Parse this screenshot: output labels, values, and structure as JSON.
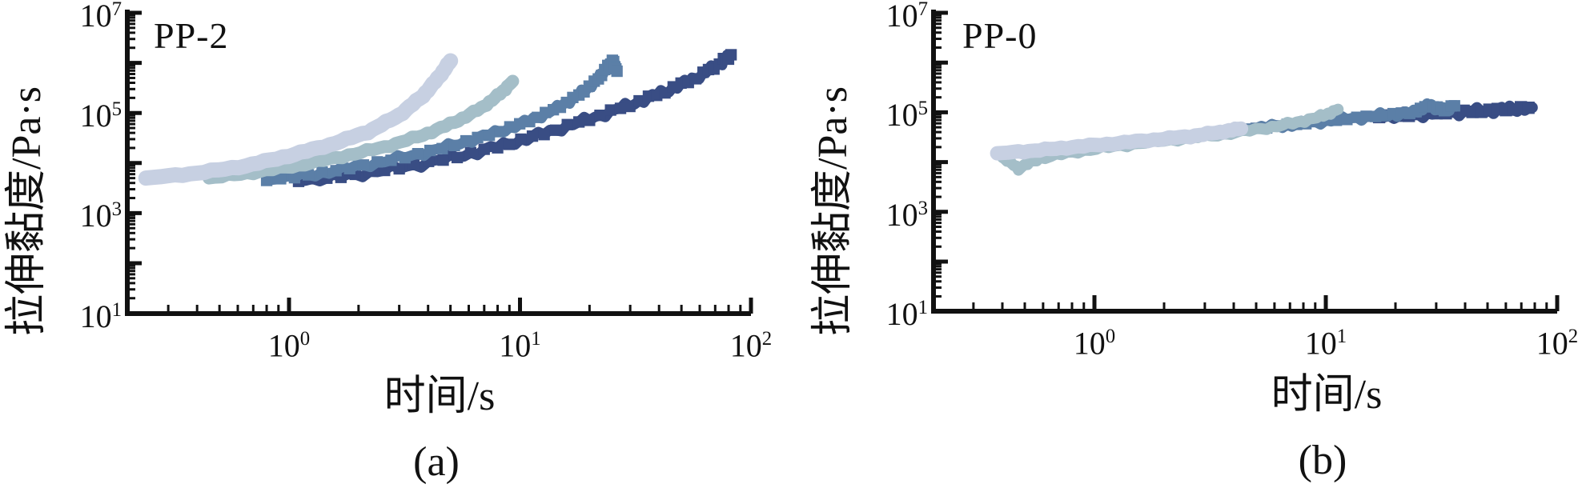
{
  "page": {
    "background": "#ffffff"
  },
  "chart_data": [
    {
      "type": "line",
      "panel": "a",
      "title": "PP-2",
      "xlabel": "时间/s",
      "ylabel": "拉伸黏度/Pa·s",
      "caption": "(a)",
      "x_scale": "log",
      "y_scale": "log",
      "xlim": [
        0.2,
        100
      ],
      "ylim": [
        10,
        10000000
      ],
      "grid": false,
      "legend": null,
      "x_ticks": [
        {
          "label": "10^0",
          "value": 1
        },
        {
          "label": "10^1",
          "value": 10
        },
        {
          "label": "10^2",
          "value": 100
        }
      ],
      "y_ticks": [
        {
          "label": "10^7",
          "value": 10000000
        },
        {
          "label": "10^5",
          "value": 100000
        },
        {
          "label": "10^3",
          "value": 1000
        },
        {
          "label": "10^1",
          "value": 10
        }
      ],
      "series": [
        {
          "id": "a-darkest",
          "color": "#394d84",
          "width": 13,
          "jitter": 3,
          "markers": "square",
          "points": [
            [
              1.1,
              4300
            ],
            [
              1.8,
              5600
            ],
            [
              3.0,
              8000
            ],
            [
              5.0,
              12500
            ],
            [
              8.0,
              21000
            ],
            [
              12,
              36000
            ],
            [
              18,
              65000
            ],
            [
              26,
              115000
            ],
            [
              36,
              200000
            ],
            [
              48,
              340000
            ],
            [
              62,
              600000
            ],
            [
              75,
              1050000
            ],
            [
              82,
              1450000
            ]
          ]
        },
        {
          "id": "a-dark",
          "color": "#5b7fa7",
          "width": 13,
          "jitter": 2.5,
          "markers": "square",
          "points": [
            [
              0.8,
              4500
            ],
            [
              1.3,
              6000
            ],
            [
              2.1,
              9000
            ],
            [
              3.4,
              14000
            ],
            [
              5.2,
              23000
            ],
            [
              7.8,
              40000
            ],
            [
              11,
              70000
            ],
            [
              14.5,
              125000
            ],
            [
              18,
              230000
            ],
            [
              21.5,
              450000
            ],
            [
              24,
              850000
            ],
            [
              25.3,
              1100000
            ],
            [
              26.3,
              680000
            ]
          ]
        },
        {
          "id": "a-light",
          "color": "#a4bec8",
          "width": 16,
          "jitter": 1.2,
          "markers": "none",
          "points": [
            [
              0.45,
              5000
            ],
            [
              0.7,
              6500
            ],
            [
              1.1,
              9000
            ],
            [
              1.7,
              13500
            ],
            [
              2.6,
              21000
            ],
            [
              3.8,
              36000
            ],
            [
              5.2,
              65000
            ],
            [
              6.8,
              125000
            ],
            [
              8.2,
              240000
            ],
            [
              9.3,
              430000
            ]
          ]
        },
        {
          "id": "a-lightest",
          "color": "#c7d0e2",
          "width": 19,
          "jitter": 0.8,
          "markers": "none",
          "points": [
            [
              0.24,
              5000
            ],
            [
              0.4,
              6300
            ],
            [
              0.65,
              8800
            ],
            [
              1.0,
              14000
            ],
            [
              1.5,
              23000
            ],
            [
              2.2,
              42000
            ],
            [
              3.0,
              90000
            ],
            [
              3.8,
              220000
            ],
            [
              4.5,
              550000
            ],
            [
              5.0,
              1100000
            ]
          ]
        }
      ]
    },
    {
      "type": "line",
      "panel": "b",
      "title": "PP-0",
      "xlabel": "时间/s",
      "ylabel": "拉伸黏度/Pa·s",
      "caption": "(b)",
      "x_scale": "log",
      "y_scale": "log",
      "xlim": [
        0.2,
        100
      ],
      "ylim": [
        10,
        10000000
      ],
      "grid": false,
      "legend": null,
      "x_ticks": [
        {
          "label": "10^0",
          "value": 1
        },
        {
          "label": "10^1",
          "value": 10
        },
        {
          "label": "10^2",
          "value": 100
        }
      ],
      "y_ticks": [
        {
          "label": "10^7",
          "value": 10000000
        },
        {
          "label": "10^5",
          "value": 100000
        },
        {
          "label": "10^3",
          "value": 1000
        },
        {
          "label": "10^1",
          "value": 10
        }
      ],
      "series": [
        {
          "id": "b-darkest",
          "color": "#394d84",
          "width": 14,
          "jitter": 3,
          "markers": "square",
          "points": [
            [
              17,
              80000
            ],
            [
              24,
              90000
            ],
            [
              33,
              100000
            ],
            [
              45,
              105000
            ],
            [
              60,
              115000
            ],
            [
              78,
              125000
            ]
          ]
        },
        {
          "id": "b-dark",
          "color": "#5b7fa7",
          "width": 13,
          "jitter": 2.5,
          "markers": "square",
          "points": [
            [
              4.5,
              46000
            ],
            [
              6.5,
              54000
            ],
            [
              9.0,
              64000
            ],
            [
              13,
              76000
            ],
            [
              18,
              88000
            ],
            [
              24,
              100000
            ],
            [
              28,
              140000
            ],
            [
              32,
              110000
            ],
            [
              36,
              135000
            ]
          ]
        },
        {
          "id": "b-light",
          "color": "#a4bec8",
          "width": 14,
          "jitter": 1.5,
          "markers": "none",
          "points": [
            [
              0.4,
              12500
            ],
            [
              0.47,
              7500
            ],
            [
              0.58,
              12000
            ],
            [
              0.85,
              16500
            ],
            [
              1.3,
              21500
            ],
            [
              2.0,
              27000
            ],
            [
              3.2,
              34000
            ],
            [
              5.0,
              45000
            ],
            [
              7.2,
              60000
            ],
            [
              9.5,
              82000
            ],
            [
              11.3,
              115000
            ]
          ]
        },
        {
          "id": "b-lightest",
          "color": "#c7d0e2",
          "width": 18,
          "jitter": 0.8,
          "markers": "none",
          "points": [
            [
              0.38,
              15000
            ],
            [
              0.55,
              17000
            ],
            [
              0.8,
              20000
            ],
            [
              1.2,
              23500
            ],
            [
              1.8,
              28000
            ],
            [
              2.6,
              33000
            ],
            [
              3.5,
              40000
            ],
            [
              4.3,
              47000
            ]
          ]
        }
      ]
    }
  ]
}
